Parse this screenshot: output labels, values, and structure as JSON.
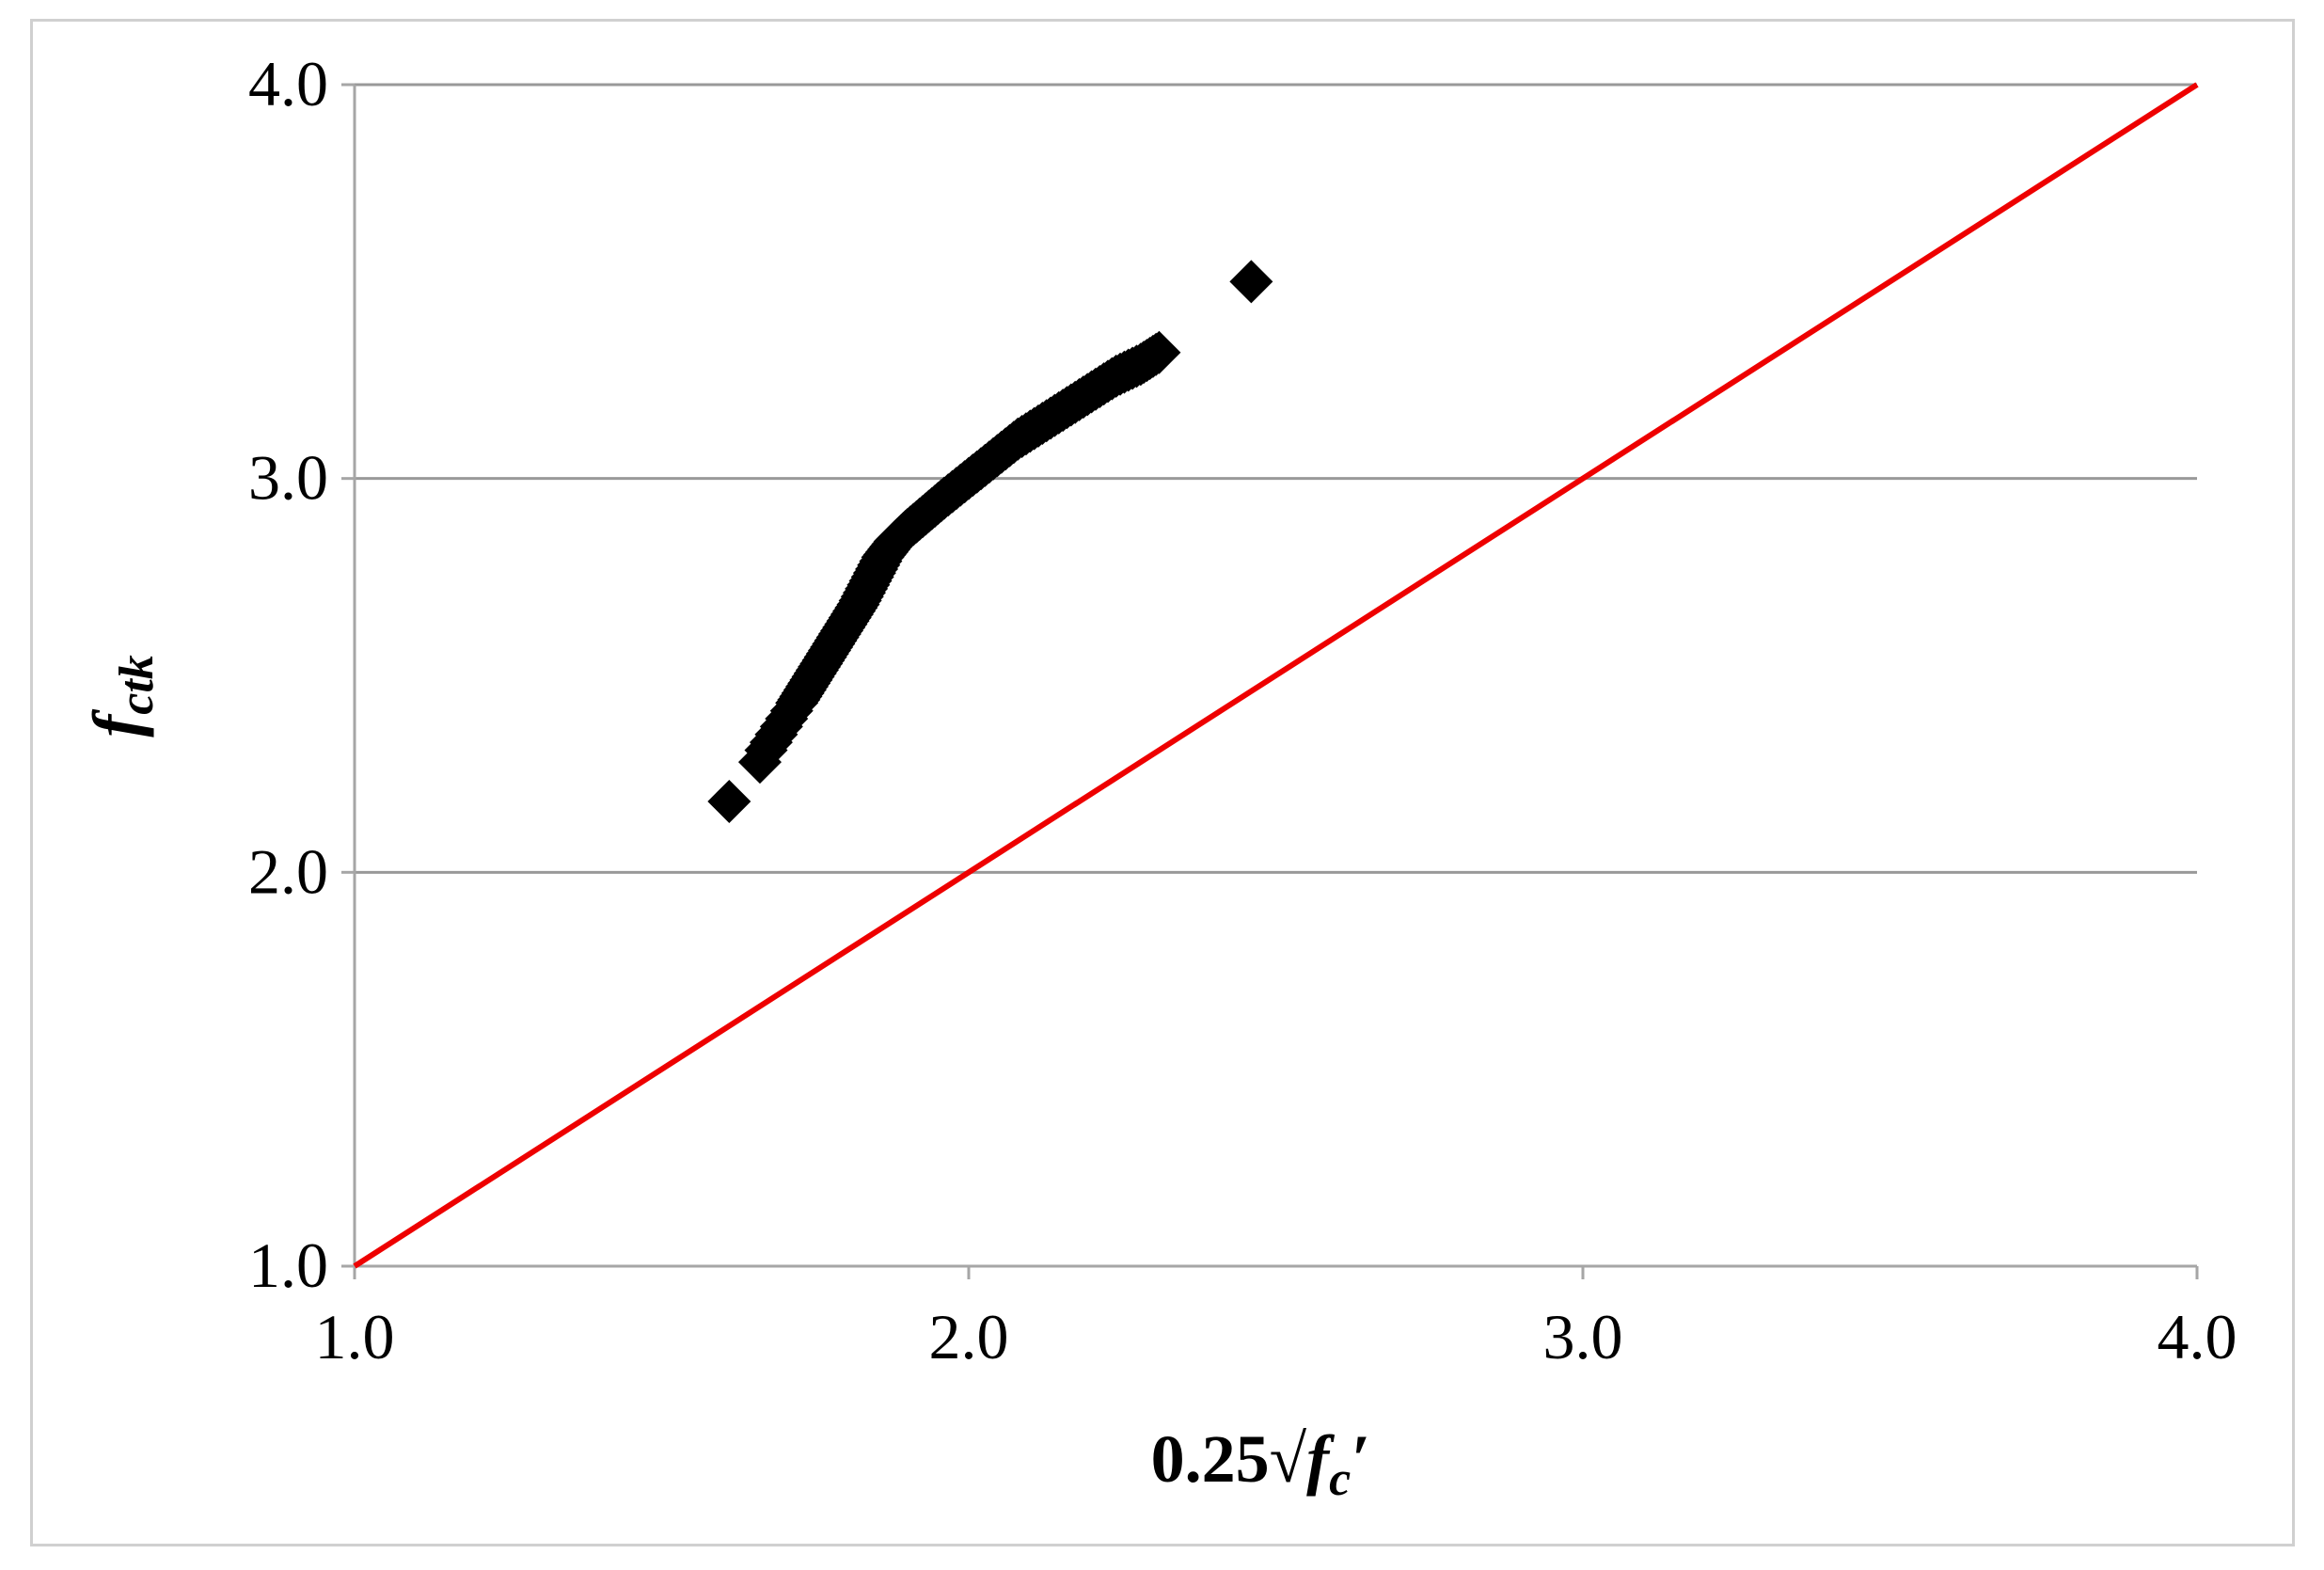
{
  "chart_data": {
    "type": "scatter",
    "title": "",
    "xlabel": {
      "prefix": "0.25√",
      "var": "f",
      "sub": "c",
      "suffix": "′"
    },
    "ylabel": {
      "var": "f",
      "sub": "ctk"
    },
    "xlim": [
      1.0,
      4.0
    ],
    "ylim": [
      1.0,
      4.0
    ],
    "xticks": [
      "1.0",
      "2.0",
      "3.0",
      "4.0"
    ],
    "yticks": [
      "1.0",
      "2.0",
      "3.0",
      "4.0"
    ],
    "grid": "horizontal",
    "colors": {
      "points": "#000000",
      "reference_line": "#ee0000",
      "grid": "#999999",
      "axis": "#a6a6a6"
    },
    "series": [
      {
        "marker": "diamond",
        "x": [
          1.61,
          1.66,
          1.67,
          1.72,
          1.74,
          1.76,
          1.78,
          1.8,
          1.82,
          1.84,
          1.86,
          1.88,
          1.9,
          1.93,
          1.96,
          2.0,
          2.04,
          2.08,
          2.12,
          2.16,
          2.2,
          2.24,
          2.28,
          2.31,
          2.46
        ],
        "y": [
          2.18,
          2.28,
          2.31,
          2.43,
          2.48,
          2.53,
          2.58,
          2.63,
          2.68,
          2.74,
          2.8,
          2.84,
          2.87,
          2.91,
          2.95,
          3.0,
          3.05,
          3.1,
          3.14,
          3.18,
          3.22,
          3.26,
          3.29,
          3.32,
          3.5
        ]
      },
      {
        "marker": "line",
        "x": [
          1.0,
          4.0
        ],
        "y": [
          1.0,
          4.0
        ]
      }
    ]
  }
}
